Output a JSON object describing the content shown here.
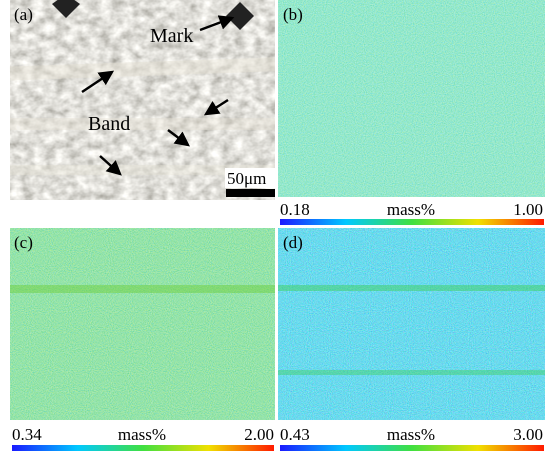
{
  "panels": [
    {
      "label": "(a)",
      "annotations": [
        "Mark",
        "Band"
      ],
      "scale_bar": "50μm"
    },
    {
      "label": "(b)",
      "scale": {
        "min": "0.18",
        "unit": "mass%",
        "max": "1.00"
      }
    },
    {
      "label": "(c)",
      "scale": {
        "min": "0.34",
        "unit": "mass%",
        "max": "2.00"
      }
    },
    {
      "label": "(d)",
      "scale": {
        "min": "0.43",
        "unit": "mass%",
        "max": "3.00"
      }
    }
  ]
}
